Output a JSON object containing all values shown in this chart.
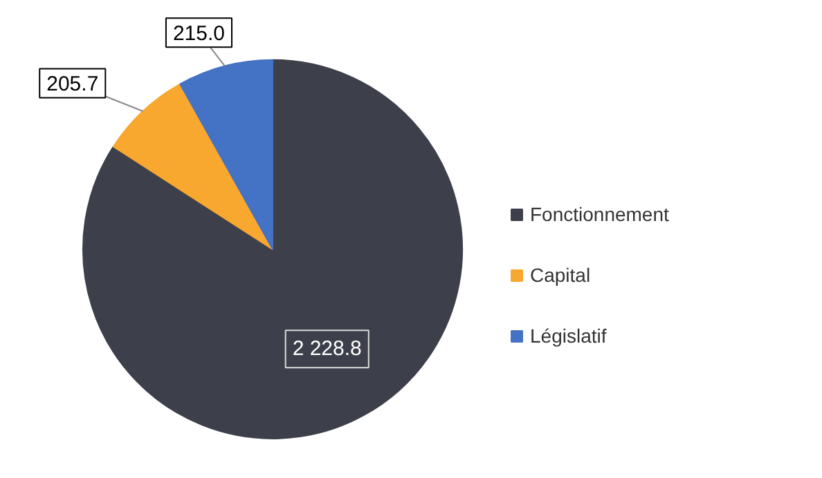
{
  "chart_data": {
    "type": "pie",
    "categories": [
      "Fonctionnement",
      "Capital",
      "Législatif"
    ],
    "values": [
      2228.8,
      205.7,
      215.0
    ],
    "colors": [
      "#3d3f4a",
      "#f9a82f",
      "#4472c4"
    ],
    "value_labels": [
      "2 228.8",
      "205.7",
      "215.0"
    ],
    "legend": "right"
  }
}
